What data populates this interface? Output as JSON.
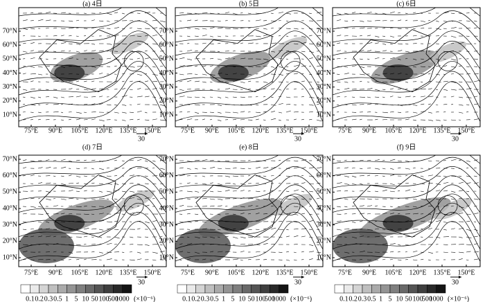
{
  "panels": [
    {
      "title": "(a) 4日"
    },
    {
      "title": "(b) 5日"
    },
    {
      "title": "(c) 6日"
    },
    {
      "title": "(d) 7日"
    },
    {
      "title": "(e) 8日"
    },
    {
      "title": "(f) 9日"
    }
  ],
  "lat_labels": [
    "10°N",
    "20°N",
    "30°N",
    "40°N",
    "50°N",
    "60°N",
    "70°N"
  ],
  "lon_labels": [
    "75°E",
    "90°E",
    "105°E",
    "120°E",
    "135°E",
    "150°E"
  ],
  "reference_vector": "30",
  "colorbar": {
    "levels": [
      0.1,
      0.2,
      0.3,
      0.5,
      1,
      5,
      10,
      50,
      100,
      500,
      1000
    ],
    "unit": "(×10⁻⁶)"
  }
}
